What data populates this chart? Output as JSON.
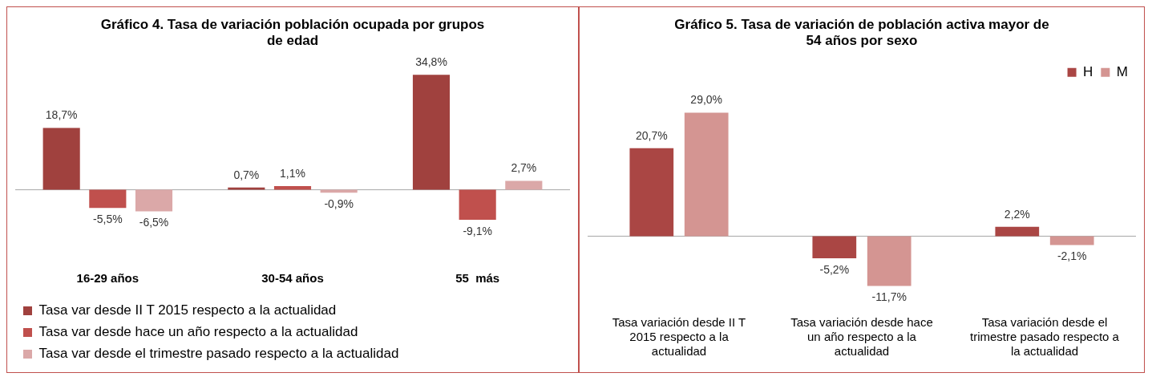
{
  "chart_data": [
    {
      "type": "bar",
      "title": "Gráfico 4. Tasa de variación población ocupada por grupos de edad",
      "categories": [
        "16-29 años",
        "30-54 años",
        "55  más"
      ],
      "legend": "bottom",
      "series": [
        {
          "name": "Tasa var desde II T 2015 respecto a la actualidad",
          "color": "#a0413e",
          "values": [
            18.7,
            0.7,
            34.8
          ],
          "value_labels": [
            "18,7%",
            "0,7%",
            "34,8%"
          ]
        },
        {
          "name": "Tasa var desde hace un año respecto a la actualidad",
          "color": "#c0504d",
          "values": [
            -5.5,
            1.1,
            -9.1
          ],
          "value_labels": [
            "-5,5%",
            "1,1%",
            "-9,1%"
          ]
        },
        {
          "name": "Tasa var desde el trimestre pasado respecto a la actualidad",
          "color": "#dba8a8",
          "values": [
            -6.5,
            -0.9,
            2.7
          ],
          "value_labels": [
            "-6,5%",
            "-0,9%",
            "2,7%"
          ]
        }
      ]
    },
    {
      "type": "bar",
      "title": "Gráfico 5. Tasa de variación de población activa mayor de 54 años por sexo",
      "categories": [
        "Tasa variación desde II T 2015 respecto a la actualidad",
        "Tasa variación desde hace un año respecto a la actualidad",
        "Tasa variación desde el trimestre pasado respecto a la actualidad"
      ],
      "legend": "top right",
      "series": [
        {
          "name": "H",
          "color": "#aa4644",
          "values": [
            20.7,
            -5.2,
            2.2
          ],
          "value_labels": [
            "20,7%",
            "-5,2%",
            "2,2%"
          ]
        },
        {
          "name": "M",
          "color": "#d49592",
          "values": [
            29.0,
            -11.7,
            -2.1
          ],
          "value_labels": [
            "29,0%",
            "-11,7%",
            "-2,1%"
          ]
        }
      ]
    }
  ]
}
